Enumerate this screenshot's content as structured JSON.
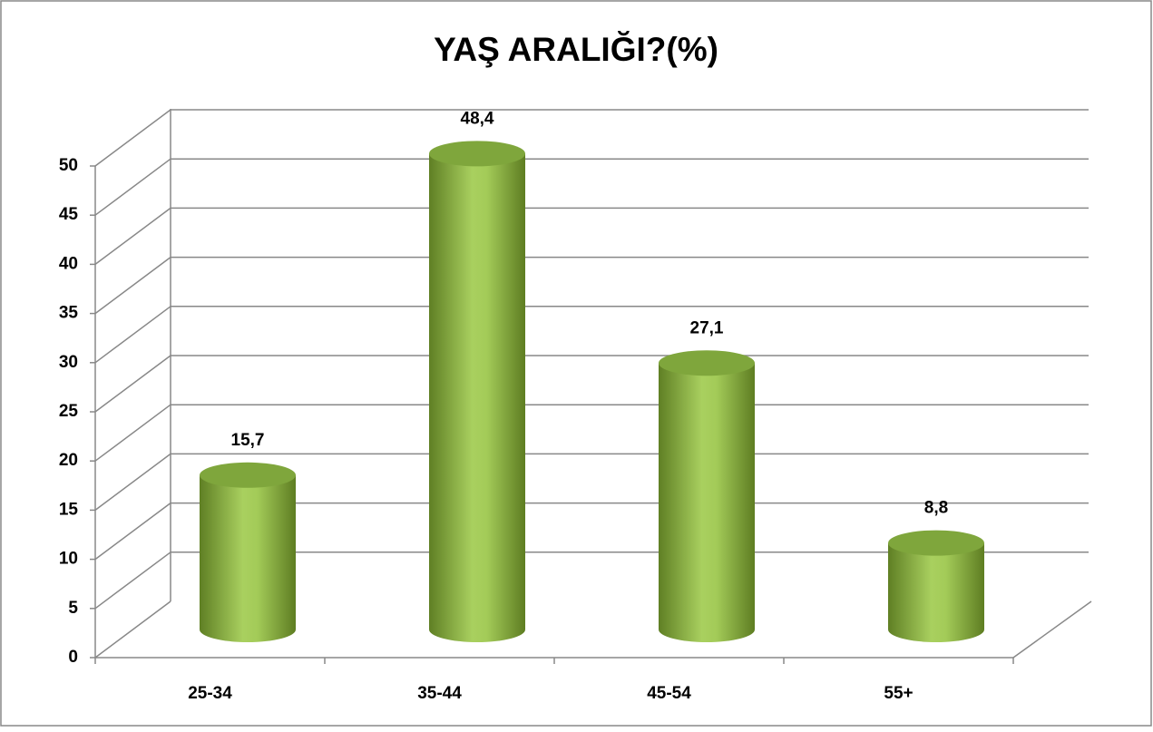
{
  "chart_data": {
    "type": "bar3d",
    "title": "YAŞ ARALIĞI?(%)",
    "categories": [
      "25-34",
      "35-44",
      "45-54",
      "55+"
    ],
    "values": [
      15.7,
      48.4,
      27.1,
      8.8
    ],
    "value_labels": [
      "15,7",
      "48,4",
      "27,1",
      "8,8"
    ],
    "color": "#9bc34f",
    "ylim": [
      0,
      50
    ],
    "yticks": [
      0,
      5,
      10,
      15,
      20,
      25,
      30,
      35,
      40,
      45,
      50
    ],
    "grid": true
  }
}
